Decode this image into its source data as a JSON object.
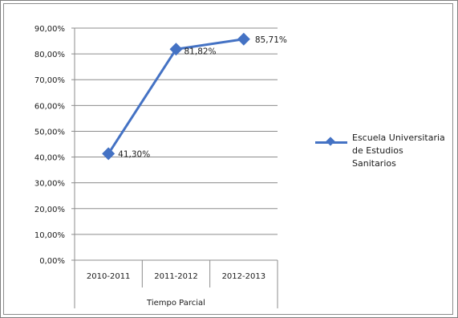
{
  "chart_data": {
    "type": "line",
    "categories": [
      "2010-2011",
      "2011-2012",
      "2012-2013"
    ],
    "group_label": "Tiempo Parcial",
    "series": [
      {
        "name": "Escuela Universitaria de Estudios Sanitarios",
        "values": [
          41.3,
          81.82,
          85.71
        ],
        "labels": [
          "41,30%",
          "81,82%",
          "85,71%"
        ],
        "color": "#4472c4"
      }
    ],
    "ylim": [
      0,
      90
    ],
    "yticks": [
      "0,00%",
      "10,00%",
      "20,00%",
      "30,00%",
      "40,00%",
      "50,00%",
      "60,00%",
      "70,00%",
      "80,00%",
      "90,00%"
    ],
    "grid": true,
    "legend": "right"
  }
}
